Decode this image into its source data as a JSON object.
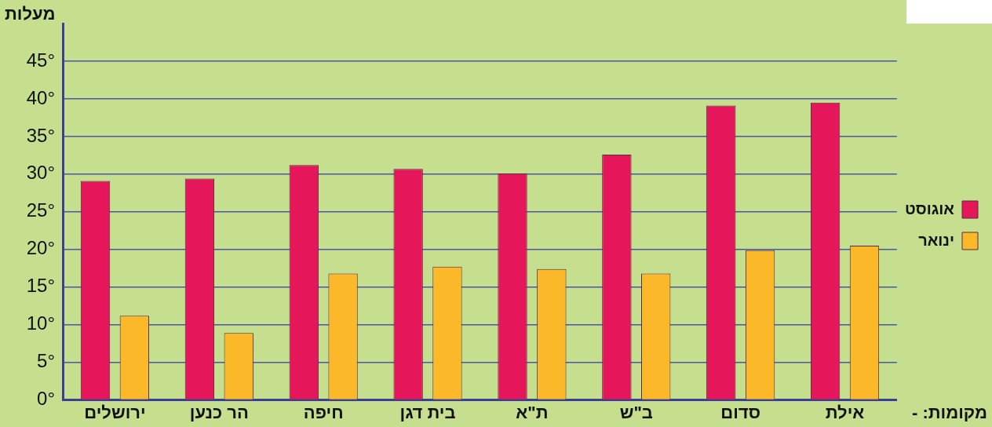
{
  "chart_data": {
    "type": "bar",
    "ylabel": "מעלות",
    "xlabel": "מקומות: -",
    "categories": [
      "ירושלים",
      "הר כנען",
      "חיפה",
      "בית דגן",
      "ת\"א",
      "ב\"ש",
      "סדום",
      "אילת"
    ],
    "series": [
      {
        "name": "אוגוסט",
        "color": "#e5175a",
        "values": [
          29.1,
          29.4,
          31.2,
          30.7,
          30.1,
          32.6,
          39.1,
          39.5
        ]
      },
      {
        "name": "ינואר",
        "color": "#fbb829",
        "values": [
          11.2,
          8.9,
          16.8,
          17.7,
          17.4,
          16.8,
          19.9,
          20.5
        ]
      }
    ],
    "ylim": [
      0,
      50
    ],
    "yticks": [
      {
        "value": 0,
        "label": "0°"
      },
      {
        "value": 5,
        "label": "5°"
      },
      {
        "value": 10,
        "label": "10°"
      },
      {
        "value": 15,
        "label": "15°"
      },
      {
        "value": 20,
        "label": "20°"
      },
      {
        "value": 25,
        "label": "25°"
      },
      {
        "value": 30,
        "label": "30°"
      },
      {
        "value": 35,
        "label": "35°"
      },
      {
        "value": 40,
        "label": "40°"
      },
      {
        "value": 45,
        "label": "45°"
      }
    ],
    "grid": "y",
    "legend": "right"
  }
}
